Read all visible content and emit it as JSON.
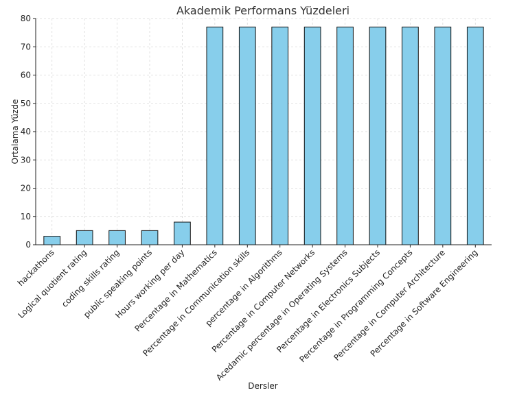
{
  "chart_data": {
    "type": "bar",
    "title": "Akademik Performans Yüzdeleri",
    "xlabel": "Dersler",
    "ylabel": "Ortalama Yüzde",
    "ylim": [
      0,
      80
    ],
    "yticks": [
      0,
      10,
      20,
      30,
      40,
      50,
      60,
      70,
      80
    ],
    "grid": true,
    "bar_color": "#87CEEB",
    "categories": [
      "hackathons",
      "Logical quotient rating",
      "coding skills rating",
      "public speaking points",
      "Hours working per day",
      "Percentage in Mathematics",
      "Percentage in Communication skills",
      "percentage in Algorithms",
      "Percentage in Computer Networks",
      "Acedamic percentage in Operating Systems",
      "Percentage in Electronics Subjects",
      "Percentage in Programming Concepts",
      "Percentage in Computer Architecture",
      "Percentage in Software Engineering"
    ],
    "values": [
      3,
      5,
      5,
      5,
      8,
      77,
      77,
      77,
      77,
      77,
      77,
      77,
      77,
      77
    ]
  }
}
